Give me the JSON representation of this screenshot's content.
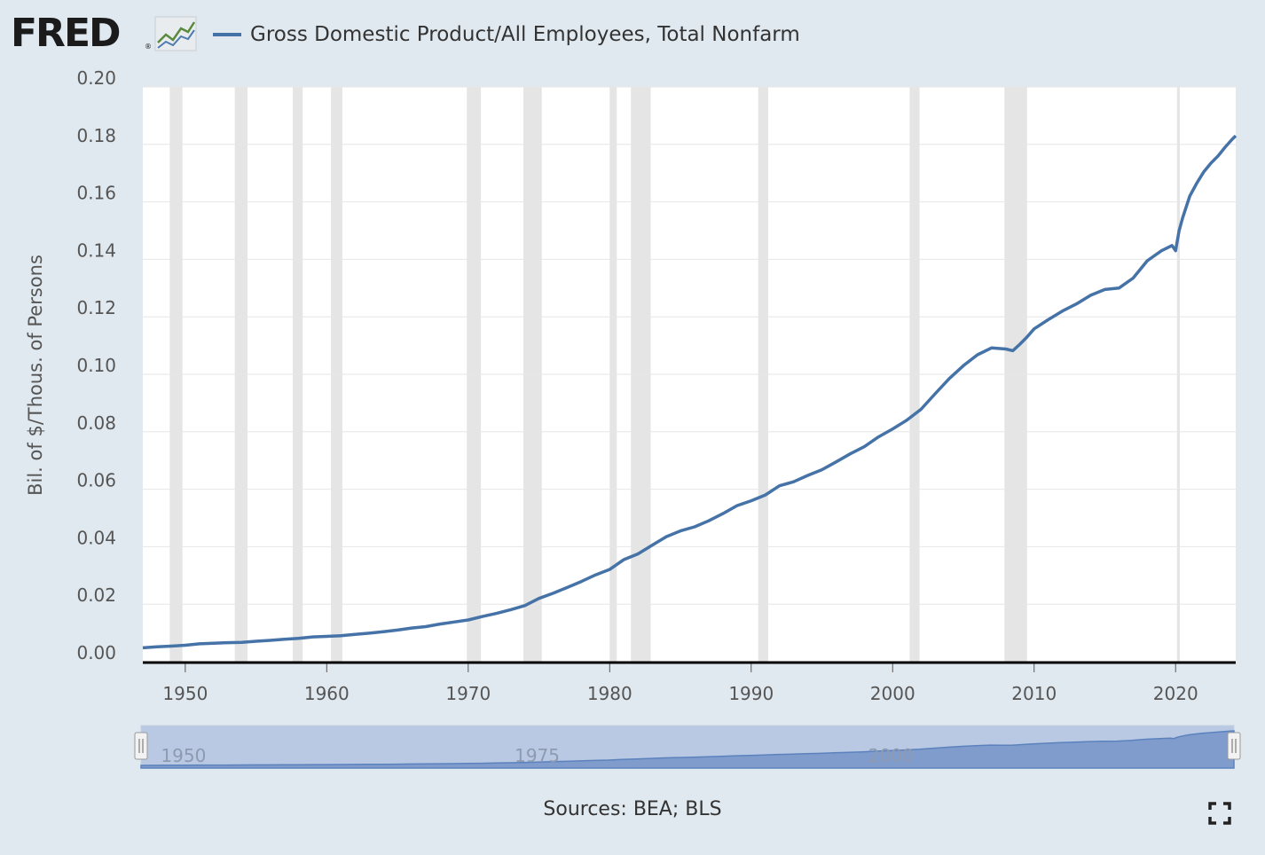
{
  "header": {
    "logo_text": "FRED",
    "logo_reg": "®",
    "legend_label": "Gross Domestic Product/All Employees, Total Nonfarm",
    "series_color": "#4572a7"
  },
  "footer": {
    "sources": "Sources: BEA; BLS"
  },
  "icons": {
    "logo": "fred-logo-graph-icon",
    "fullscreen": "fullscreen-icon"
  },
  "colors": {
    "background": "#e1e9f0",
    "plot_background": "#ffffff",
    "recession_band": "#e5e5e5",
    "navigator_fill": "#b7c7e5",
    "navigator_series": "#6b8fc7"
  },
  "chart_data": {
    "type": "line",
    "title": "",
    "xlabel": "",
    "ylabel": "Bil. of $/Thous. of Persons",
    "xlim": [
      1947,
      2024.25
    ],
    "ylim": [
      0,
      0.2
    ],
    "yticks": [
      "0.00",
      "0.02",
      "0.04",
      "0.06",
      "0.08",
      "0.10",
      "0.12",
      "0.14",
      "0.16",
      "0.18",
      "0.20"
    ],
    "xticks": [
      "1950",
      "1960",
      "1970",
      "1980",
      "1990",
      "2000",
      "2010",
      "2020"
    ],
    "grid": true,
    "recessions": [
      [
        1948.9,
        1949.8
      ],
      [
        1953.5,
        1954.4
      ],
      [
        1957.6,
        1958.3
      ],
      [
        1960.3,
        1961.1
      ],
      [
        1969.9,
        1970.9
      ],
      [
        1973.9,
        1975.2
      ],
      [
        1980.0,
        1980.5
      ],
      [
        1981.5,
        1982.9
      ],
      [
        1990.5,
        1991.2
      ],
      [
        2001.2,
        2001.9
      ],
      [
        2007.9,
        2009.5
      ],
      [
        2020.1,
        2020.3
      ]
    ],
    "series": [
      {
        "name": "Gross Domestic Product/All Employees, Total Nonfarm",
        "x": [
          1947,
          1948,
          1949,
          1950,
          1951,
          1952,
          1953,
          1954,
          1955,
          1956,
          1957,
          1958,
          1959,
          1960,
          1961,
          1962,
          1963,
          1964,
          1965,
          1966,
          1967,
          1968,
          1969,
          1970,
          1971,
          1972,
          1973,
          1974,
          1975,
          1976,
          1977,
          1978,
          1979,
          1980,
          1981,
          1982,
          1983,
          1984,
          1985,
          1986,
          1987,
          1988,
          1989,
          1990,
          1991,
          1992,
          1993,
          1994,
          1995,
          1996,
          1997,
          1998,
          1999,
          2000,
          2001,
          2002,
          2003,
          2004,
          2005,
          2006,
          2007,
          2008,
          2008.5,
          2009,
          2009.5,
          2010,
          2011,
          2012,
          2013,
          2014,
          2015,
          2016,
          2017,
          2018,
          2019,
          2019.75,
          2020.0,
          2020.25,
          2020.5,
          2021,
          2021.5,
          2022,
          2022.5,
          2023,
          2023.5,
          2024,
          2024.25
        ],
        "y": [
          0.0048,
          0.0052,
          0.0054,
          0.0057,
          0.0062,
          0.0064,
          0.0066,
          0.0067,
          0.0071,
          0.0074,
          0.0078,
          0.0081,
          0.0086,
          0.0088,
          0.009,
          0.0095,
          0.0099,
          0.0104,
          0.011,
          0.0117,
          0.0122,
          0.0131,
          0.0138,
          0.0145,
          0.0157,
          0.0168,
          0.0181,
          0.0195,
          0.022,
          0.0238,
          0.0258,
          0.0279,
          0.0302,
          0.0321,
          0.0355,
          0.0375,
          0.0405,
          0.0435,
          0.0455,
          0.0469,
          0.049,
          0.0515,
          0.0543,
          0.056,
          0.058,
          0.0612,
          0.0626,
          0.0648,
          0.0668,
          0.0695,
          0.0723,
          0.0748,
          0.0782,
          0.081,
          0.084,
          0.0878,
          0.0932,
          0.0985,
          0.103,
          0.1068,
          0.1092,
          0.1088,
          0.1082,
          0.1105,
          0.113,
          0.1158,
          0.119,
          0.122,
          0.1245,
          0.1275,
          0.1295,
          0.13,
          0.1335,
          0.1395,
          0.143,
          0.1448,
          0.143,
          0.15,
          0.1545,
          0.162,
          0.1665,
          0.1705,
          0.1735,
          0.176,
          0.179,
          0.1818,
          0.183
        ]
      }
    ],
    "navigator": {
      "xticks": [
        "1950",
        "1975",
        "2000"
      ]
    }
  }
}
